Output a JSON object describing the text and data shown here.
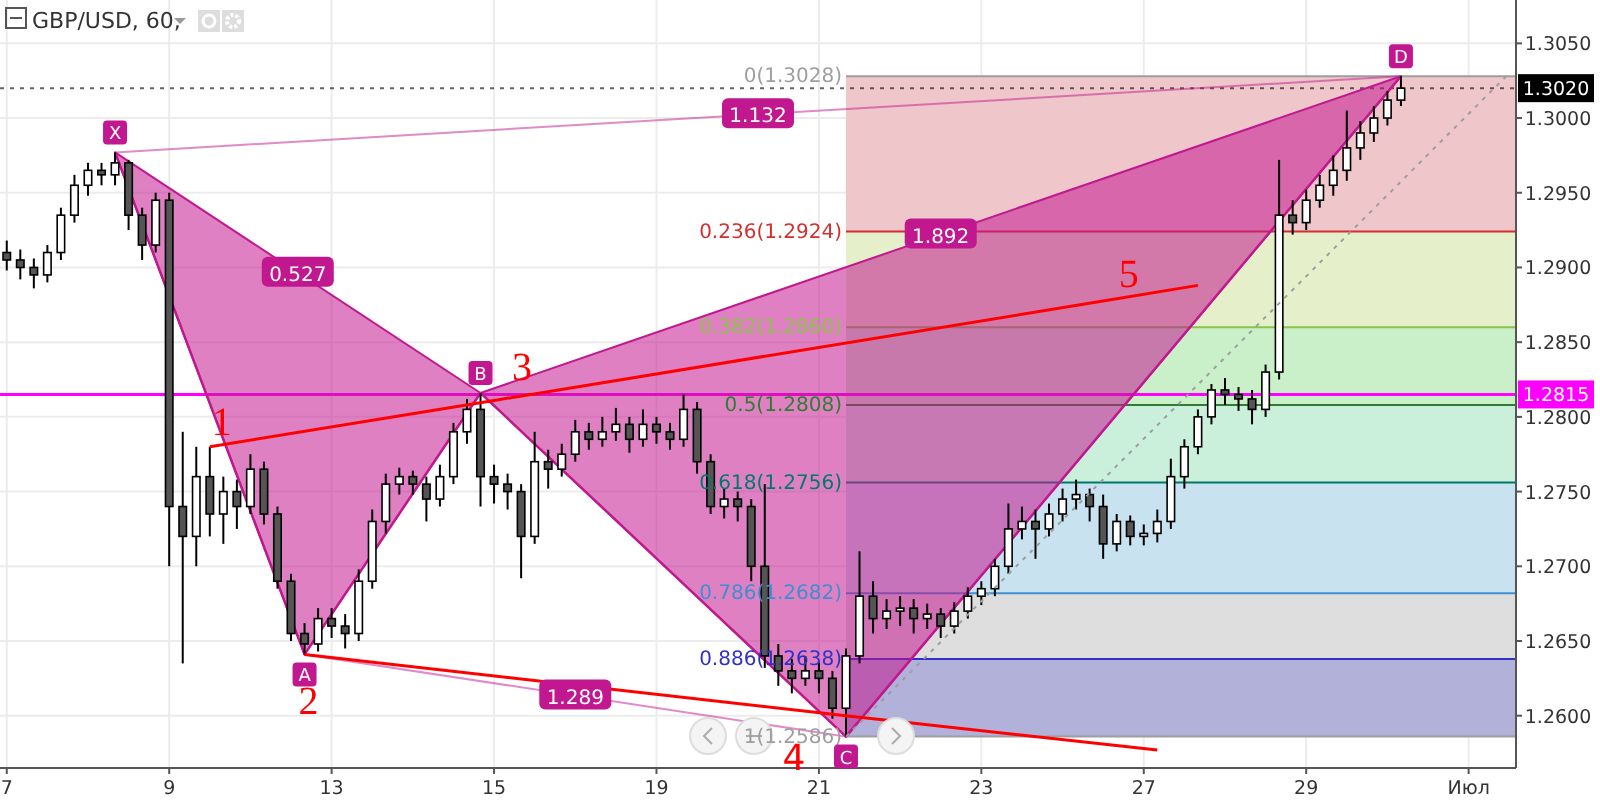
{
  "chart_data": {
    "type": "candlestick",
    "title": "GBP/USD, 60,",
    "categories": [
      "7",
      null,
      null,
      null,
      null,
      null,
      null,
      null,
      null,
      null,
      null,
      null,
      "9",
      null,
      null,
      null,
      null,
      null,
      null,
      null,
      null,
      null,
      null,
      null,
      "13",
      null,
      null,
      null,
      null,
      null,
      null,
      null,
      null,
      null,
      null,
      null,
      "15",
      null,
      null,
      null,
      null,
      null,
      null,
      null,
      null,
      null,
      null,
      null,
      "19",
      null,
      null,
      null,
      null,
      null,
      null,
      null,
      null,
      null,
      null,
      null,
      "21",
      null,
      null,
      null,
      null,
      null,
      null,
      null,
      null,
      null,
      null,
      null,
      "23",
      null,
      null,
      null,
      null,
      null,
      null,
      null,
      null,
      null,
      null,
      null,
      "27",
      null,
      null,
      null,
      null,
      null,
      null,
      null,
      null,
      null,
      null,
      null,
      "29",
      null,
      null,
      null,
      null,
      null,
      null,
      null,
      null,
      null,
      null,
      null,
      "Июл",
      null,
      null,
      null
    ],
    "ohlc": [
      [
        1.291,
        1.2918,
        1.2898,
        1.2905
      ],
      [
        1.2905,
        1.2912,
        1.2892,
        1.29
      ],
      [
        1.29,
        1.2906,
        1.2886,
        1.2895
      ],
      [
        1.2895,
        1.2915,
        1.289,
        1.291
      ],
      [
        1.291,
        1.294,
        1.2905,
        1.2935
      ],
      [
        1.2935,
        1.2962,
        1.293,
        1.2955
      ],
      [
        1.2955,
        1.297,
        1.2948,
        1.2965
      ],
      [
        1.2965,
        1.297,
        1.2955,
        1.2962
      ],
      [
        1.2962,
        1.2977,
        1.2955,
        1.297
      ],
      [
        1.297,
        1.2972,
        1.2925,
        1.2935
      ],
      [
        1.2935,
        1.294,
        1.2905,
        1.2915
      ],
      [
        1.2915,
        1.295,
        1.291,
        1.2945
      ],
      [
        1.2945,
        1.295,
        1.27,
        1.274
      ],
      [
        1.274,
        1.279,
        1.2635,
        1.272
      ],
      [
        1.272,
        1.278,
        1.27,
        1.276
      ],
      [
        1.276,
        1.278,
        1.272,
        1.2735
      ],
      [
        1.2735,
        1.276,
        1.2715,
        1.275
      ],
      [
        1.275,
        1.2758,
        1.2725,
        1.274
      ],
      [
        1.274,
        1.2775,
        1.2735,
        1.2765
      ],
      [
        1.2765,
        1.277,
        1.2728,
        1.2735
      ],
      [
        1.2735,
        1.274,
        1.2685,
        1.269
      ],
      [
        1.269,
        1.2695,
        1.265,
        1.2655
      ],
      [
        1.2655,
        1.2662,
        1.2641,
        1.2648
      ],
      [
        1.2648,
        1.2672,
        1.2643,
        1.2665
      ],
      [
        1.2665,
        1.2672,
        1.2652,
        1.266
      ],
      [
        1.266,
        1.2668,
        1.2645,
        1.2655
      ],
      [
        1.2655,
        1.2698,
        1.265,
        1.269
      ],
      [
        1.269,
        1.2738,
        1.2685,
        1.273
      ],
      [
        1.273,
        1.2762,
        1.2722,
        1.2755
      ],
      [
        1.2755,
        1.2766,
        1.2748,
        1.276
      ],
      [
        1.276,
        1.2764,
        1.2748,
        1.2755
      ],
      [
        1.2755,
        1.276,
        1.273,
        1.2745
      ],
      [
        1.2745,
        1.2768,
        1.274,
        1.276
      ],
      [
        1.276,
        1.2796,
        1.2755,
        1.279
      ],
      [
        1.279,
        1.2812,
        1.2782,
        1.2805
      ],
      [
        1.2805,
        1.2816,
        1.274,
        1.276
      ],
      [
        1.276,
        1.2768,
        1.2742,
        1.2755
      ],
      [
        1.2755,
        1.2762,
        1.2738,
        1.275
      ],
      [
        1.275,
        1.2755,
        1.2692,
        1.272
      ],
      [
        1.272,
        1.279,
        1.2715,
        1.277
      ],
      [
        1.277,
        1.2778,
        1.2752,
        1.2765
      ],
      [
        1.2765,
        1.2782,
        1.276,
        1.2775
      ],
      [
        1.2775,
        1.2798,
        1.277,
        1.279
      ],
      [
        1.279,
        1.2796,
        1.2778,
        1.2785
      ],
      [
        1.2785,
        1.28,
        1.278,
        1.279
      ],
      [
        1.279,
        1.2806,
        1.2784,
        1.2795
      ],
      [
        1.2795,
        1.28,
        1.2776,
        1.2785
      ],
      [
        1.2785,
        1.2805,
        1.278,
        1.2795
      ],
      [
        1.2795,
        1.28,
        1.2782,
        1.279
      ],
      [
        1.279,
        1.2796,
        1.2778,
        1.2785
      ],
      [
        1.2785,
        1.2815,
        1.278,
        1.2805
      ],
      [
        1.2805,
        1.281,
        1.2762,
        1.277
      ],
      [
        1.277,
        1.2775,
        1.2735,
        1.274
      ],
      [
        1.274,
        1.2752,
        1.2732,
        1.2745
      ],
      [
        1.2745,
        1.275,
        1.273,
        1.274
      ],
      [
        1.274,
        1.2745,
        1.269,
        1.27
      ],
      [
        1.27,
        1.2755,
        1.2632,
        1.264
      ],
      [
        1.264,
        1.2648,
        1.262,
        1.263
      ],
      [
        1.263,
        1.2638,
        1.2615,
        1.2625
      ],
      [
        1.2625,
        1.264,
        1.262,
        1.263
      ],
      [
        1.263,
        1.2636,
        1.2615,
        1.2625
      ],
      [
        1.2625,
        1.263,
        1.2598,
        1.2605
      ],
      [
        1.2605,
        1.2645,
        1.2586,
        1.264
      ],
      [
        1.264,
        1.271,
        1.2635,
        1.268
      ],
      [
        1.268,
        1.269,
        1.2655,
        1.2665
      ],
      [
        1.2665,
        1.2678,
        1.2658,
        1.267
      ],
      [
        1.267,
        1.268,
        1.266,
        1.2672
      ],
      [
        1.2672,
        1.2678,
        1.2655,
        1.2665
      ],
      [
        1.2665,
        1.2675,
        1.2658,
        1.2668
      ],
      [
        1.2668,
        1.2672,
        1.2652,
        1.266
      ],
      [
        1.266,
        1.2676,
        1.2655,
        1.267
      ],
      [
        1.267,
        1.2686,
        1.2665,
        1.268
      ],
      [
        1.268,
        1.269,
        1.2674,
        1.2685
      ],
      [
        1.2685,
        1.2705,
        1.268,
        1.27
      ],
      [
        1.27,
        1.2742,
        1.2695,
        1.2725
      ],
      [
        1.2725,
        1.274,
        1.2718,
        1.273
      ],
      [
        1.273,
        1.2738,
        1.2705,
        1.2725
      ],
      [
        1.2725,
        1.2742,
        1.272,
        1.2735
      ],
      [
        1.2735,
        1.2752,
        1.273,
        1.2745
      ],
      [
        1.2745,
        1.2758,
        1.2738,
        1.2748
      ],
      [
        1.2748,
        1.2752,
        1.273,
        1.274
      ],
      [
        1.274,
        1.2748,
        1.2705,
        1.2715
      ],
      [
        1.2715,
        1.2735,
        1.271,
        1.273
      ],
      [
        1.273,
        1.2734,
        1.2714,
        1.272
      ],
      [
        1.272,
        1.2728,
        1.2714,
        1.2722
      ],
      [
        1.2722,
        1.2738,
        1.2716,
        1.273
      ],
      [
        1.273,
        1.2772,
        1.2725,
        1.276
      ],
      [
        1.276,
        1.2785,
        1.2752,
        1.278
      ],
      [
        1.278,
        1.2805,
        1.2775,
        1.28
      ],
      [
        1.28,
        1.2822,
        1.2795,
        1.2818
      ],
      [
        1.2818,
        1.2826,
        1.2808,
        1.2815
      ],
      [
        1.2815,
        1.282,
        1.2804,
        1.2812
      ],
      [
        1.2812,
        1.2818,
        1.2795,
        1.2805
      ],
      [
        1.2805,
        1.2835,
        1.28,
        1.283
      ],
      [
        1.283,
        1.2972,
        1.2825,
        1.2935
      ],
      [
        1.2935,
        1.2945,
        1.2922,
        1.293
      ],
      [
        1.293,
        1.2952,
        1.2925,
        1.2945
      ],
      [
        1.2945,
        1.2962,
        1.294,
        1.2955
      ],
      [
        1.2955,
        1.2975,
        1.2948,
        1.2965
      ],
      [
        1.2965,
        1.3005,
        1.2958,
        1.298
      ],
      [
        1.298,
        1.2998,
        1.2972,
        1.299
      ],
      [
        1.299,
        1.3008,
        1.2984,
        1.3
      ],
      [
        1.3,
        1.3018,
        1.2995,
        1.3012
      ],
      [
        1.3012,
        1.3028,
        1.3008,
        1.302
      ],
      null,
      null,
      null,
      null,
      null,
      null,
      null,
      null
    ],
    "series": [
      {
        "type": "line",
        "color": "#c2188f",
        "values": [
          null,
          null,
          null,
          null,
          null,
          null,
          null,
          null,
          1.2977,
          null,
          null,
          null,
          null,
          null,
          null,
          null,
          null,
          null,
          null,
          null,
          null,
          null,
          1.2641,
          null,
          null,
          null,
          null,
          null,
          null,
          null,
          null,
          null,
          null,
          null,
          null,
          1.2816,
          null,
          null,
          null,
          null,
          null,
          null,
          null,
          null,
          null,
          null,
          null,
          null,
          null,
          null,
          null,
          null,
          null,
          null,
          null,
          null,
          null,
          null,
          null,
          null,
          null,
          null,
          1.2586,
          null,
          null,
          null,
          null,
          null,
          null,
          null,
          null,
          null,
          null,
          null,
          null,
          null,
          null,
          null,
          null,
          null,
          null,
          null,
          null,
          null,
          null,
          null,
          null,
          null,
          null,
          null,
          null,
          null,
          null,
          null,
          null,
          null,
          null,
          null,
          null,
          null,
          null,
          null,
          null,
          1.3028,
          null,
          null,
          null,
          null,
          null,
          null,
          null,
          null
        ],
        "value_labels": [
          null,
          null,
          null,
          null,
          null,
          null,
          null,
          null,
          "X",
          null,
          null,
          null,
          null,
          null,
          null,
          null,
          null,
          null,
          null,
          null,
          null,
          null,
          "A",
          null,
          null,
          null,
          null,
          null,
          null,
          null,
          null,
          null,
          null,
          null,
          null,
          "B",
          null,
          null,
          null,
          null,
          null,
          null,
          null,
          null,
          null,
          null,
          null,
          null,
          null,
          null,
          null,
          null,
          null,
          null,
          null,
          null,
          null,
          null,
          null,
          null,
          null,
          null,
          "C",
          null,
          null,
          null,
          null,
          null,
          null,
          null,
          null,
          null,
          null,
          null,
          null,
          null,
          null,
          null,
          null,
          null,
          null,
          null,
          null,
          null,
          null,
          null,
          null,
          null,
          null,
          null,
          null,
          null,
          null,
          null,
          null,
          null,
          null,
          null,
          null,
          null,
          null,
          null,
          null,
          "D",
          null,
          null,
          null,
          null,
          null,
          null,
          null,
          null
        ]
      },
      {
        "type": "line",
        "color": "#ff0000",
        "values": [
          null,
          null,
          null,
          null,
          null,
          null,
          null,
          null,
          null,
          null,
          null,
          null,
          null,
          null,
          null,
          1.278,
          null,
          null,
          null,
          null,
          null,
          null,
          null,
          null,
          null,
          null,
          null,
          null,
          null,
          null,
          null,
          null,
          null,
          null,
          null,
          null,
          1.2811,
          null,
          null,
          null,
          null,
          null,
          null,
          null,
          null,
          null,
          null,
          null,
          null,
          null,
          null,
          null,
          null,
          null,
          null,
          null,
          null,
          null,
          null,
          null,
          null,
          null,
          null,
          null,
          null,
          null,
          null,
          null,
          null,
          null,
          null,
          null,
          null,
          null,
          null,
          null,
          null,
          null,
          null,
          null,
          null,
          null,
          1.2879,
          null,
          null,
          null,
          null,
          null,
          1.2888,
          null,
          null,
          null,
          null,
          null,
          null,
          null,
          null,
          null,
          null,
          null,
          null,
          null,
          null,
          null,
          null,
          null,
          null,
          null,
          null,
          null,
          null,
          null
        ]
      },
      {
        "type": "line",
        "color": "#ff0000",
        "values": [
          null,
          null,
          null,
          null,
          null,
          null,
          null,
          null,
          null,
          null,
          null,
          null,
          null,
          null,
          null,
          null,
          null,
          null,
          null,
          null,
          null,
          null,
          1.2641,
          null,
          null,
          null,
          null,
          null,
          null,
          null,
          null,
          null,
          null,
          null,
          null,
          null,
          null,
          null,
          null,
          null,
          null,
          null,
          null,
          null,
          null,
          null,
          null,
          null,
          null,
          null,
          null,
          null,
          null,
          null,
          null,
          null,
          null,
          null,
          null,
          null,
          null,
          null,
          1.26,
          null,
          null,
          null,
          null,
          null,
          null,
          null,
          null,
          null,
          null,
          null,
          null,
          null,
          null,
          null,
          null,
          null,
          null,
          null,
          null,
          null,
          null,
          1.2577,
          null,
          null,
          null,
          null,
          null,
          null,
          null,
          null,
          null,
          null,
          null,
          null,
          null,
          null,
          null,
          null,
          null,
          null,
          null,
          null,
          null,
          null,
          null,
          null,
          null,
          null
        ]
      },
      {
        "type": "line",
        "color": "#9e9e9e",
        "line_style": "dotted",
        "values": [
          null,
          null,
          null,
          null,
          null,
          null,
          null,
          null,
          null,
          null,
          null,
          null,
          null,
          null,
          null,
          null,
          null,
          null,
          null,
          null,
          null,
          null,
          null,
          null,
          null,
          null,
          null,
          null,
          null,
          null,
          null,
          null,
          null,
          null,
          null,
          null,
          null,
          null,
          null,
          null,
          null,
          null,
          null,
          null,
          null,
          null,
          null,
          null,
          null,
          null,
          null,
          null,
          null,
          null,
          null,
          null,
          null,
          null,
          null,
          null,
          null,
          null,
          1.2586,
          null,
          null,
          null,
          null,
          null,
          null,
          null,
          null,
          null,
          null,
          null,
          null,
          null,
          null,
          null,
          null,
          null,
          null,
          null,
          null,
          null,
          null,
          null,
          null,
          null,
          null,
          null,
          null,
          null,
          null,
          null,
          null,
          null,
          null,
          null,
          null,
          null,
          null,
          null,
          null,
          null,
          null,
          null,
          null,
          null,
          null,
          null,
          null,
          1.303
        ]
      }
    ],
    "annotations": [
      "0.527",
      "1.892",
      "1.289",
      "1.132",
      {
        "text": "1",
        "y": 1.278
      },
      {
        "text": "2",
        "y": 1.2641
      },
      {
        "text": "3",
        "y": 1.2811
      },
      {
        "text": "4",
        "y": 1.26
      },
      {
        "text": "5",
        "y": 1.2879
      }
    ],
    "ylim": [
      1.2565,
      1.3079
    ],
    "yticks": [
      {
        "value": 1.26,
        "label": "1.2600"
      },
      {
        "value": 1.265,
        "label": "1.2650"
      },
      {
        "value": 1.27,
        "label": "1.2700"
      },
      {
        "value": 1.275,
        "label": "1.2750"
      },
      {
        "value": 1.28,
        "label": "1.2800"
      },
      {
        "value": 1.285,
        "label": "1.2850"
      },
      {
        "value": 1.29,
        "label": "1.2900"
      },
      {
        "value": 1.295,
        "label": "1.2950"
      },
      {
        "value": 1.3,
        "label": "1.3000"
      },
      {
        "value": 1.305,
        "label": "1.3050"
      }
    ],
    "bands": [
      {
        "axis": "y",
        "from": 1.2924,
        "to": 1.3028,
        "color": "#efc7cb"
      },
      {
        "axis": "y",
        "from": 1.286,
        "to": 1.2924,
        "color": "#e5f0cb"
      },
      {
        "axis": "y",
        "from": 1.2808,
        "to": 1.286,
        "color": "#c9f0c9"
      },
      {
        "axis": "y",
        "from": 1.2756,
        "to": 1.2808,
        "color": "#caf0dc"
      },
      {
        "axis": "y",
        "from": 1.2682,
        "to": 1.2756,
        "color": "#c9e2f0"
      },
      {
        "axis": "y",
        "from": 1.2638,
        "to": 1.2682,
        "color": "#dedede"
      },
      {
        "axis": "y",
        "from": 1.2586,
        "to": 1.2638,
        "color": "#b1b1da"
      }
    ],
    "ref_lines": [
      {
        "axis": "y",
        "value": 1.3028,
        "label": "0(1.3028)",
        "color": "#9e9e9e"
      },
      {
        "axis": "y",
        "value": 1.2924,
        "label": "0.236(1.2924)",
        "color": "#d32f2f"
      },
      {
        "axis": "y",
        "value": 1.286,
        "label": "0.382(1.2860)",
        "color": "#8bc34a"
      },
      {
        "axis": "y",
        "value": 1.2808,
        "label": "0.5(1.2808)",
        "color": "#2e7d32"
      },
      {
        "axis": "y",
        "value": 1.2756,
        "label": "0.618(1.2756)",
        "color": "#00796b"
      },
      {
        "axis": "y",
        "value": 1.2682,
        "label": "0.786(1.2682)",
        "color": "#3d8fd1"
      },
      {
        "axis": "y",
        "value": 1.2638,
        "label": "0.886(1.2638)",
        "color": "#3030c8"
      },
      {
        "axis": "y",
        "value": 1.2586,
        "label": "1(1.2586)",
        "color": "#9e9e9e"
      },
      {
        "axis": "y",
        "value": 1.2815,
        "label": "1.2815",
        "color": "#ff00ff",
        "line_style": "solid"
      },
      {
        "axis": "y",
        "value": 1.302,
        "label": "1.3020",
        "color": "#000000",
        "line_style": "dotted"
      }
    ],
    "grid": true
  }
}
